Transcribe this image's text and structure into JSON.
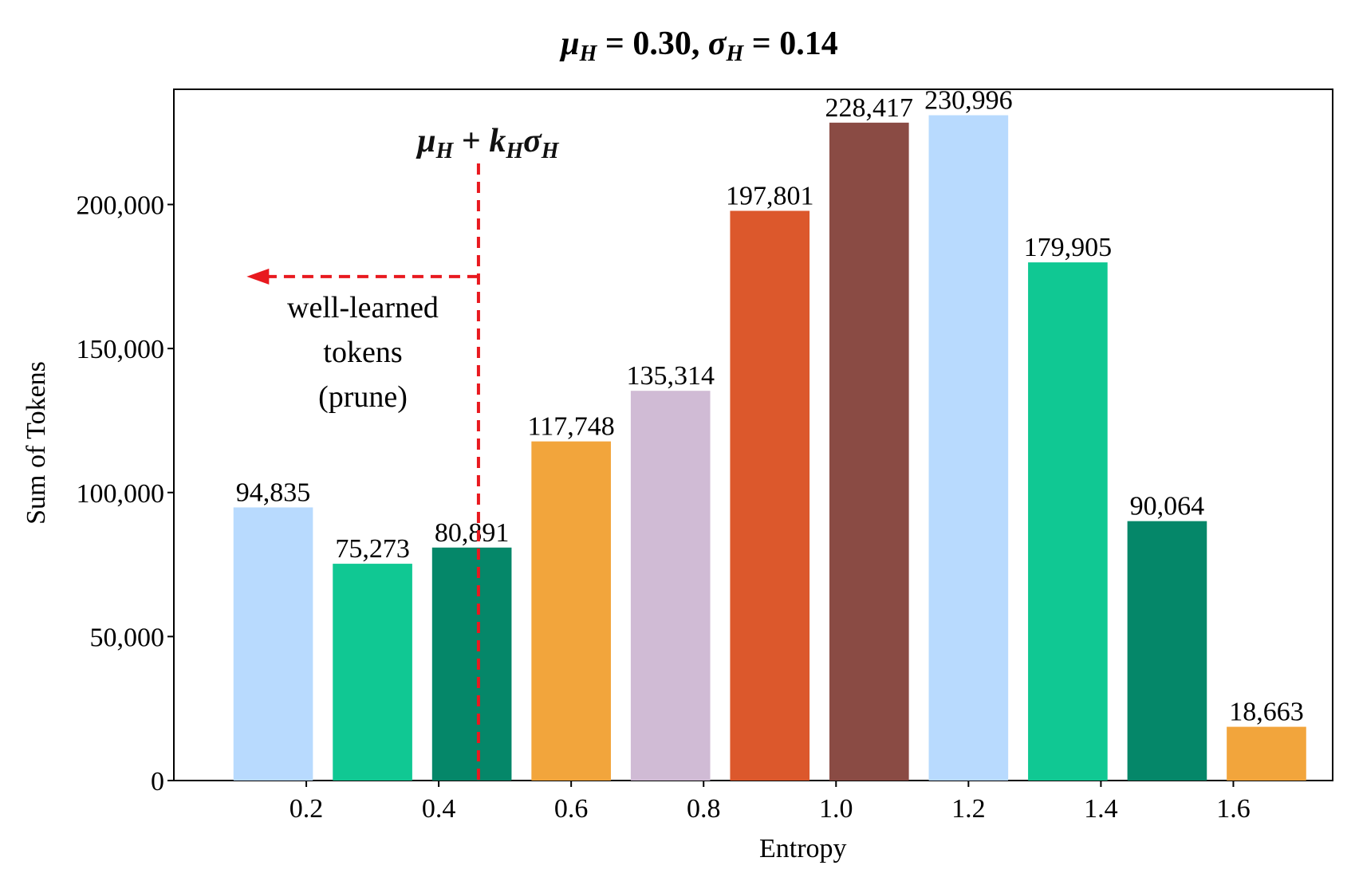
{
  "chart_data": {
    "type": "bar",
    "title": "μH = 0.30, σH = 0.14",
    "title_parts": {
      "mu": "μ",
      "sigma": "σ",
      "sub": "H",
      "mean_value": "0.30",
      "std_value": "0.14"
    },
    "xlabel": "Entropy",
    "ylabel": "Sum of Tokens",
    "xlim": [
      0.0,
      1.75
    ],
    "ylim": [
      0,
      240000
    ],
    "x_ticks": [
      0.2,
      0.4,
      0.6,
      0.8,
      1.0,
      1.2,
      1.4,
      1.6
    ],
    "x_tick_labels": [
      "0.2",
      "0.4",
      "0.6",
      "0.8",
      "1.0",
      "1.2",
      "1.4",
      "1.6"
    ],
    "y_ticks": [
      0,
      50000,
      100000,
      150000,
      200000
    ],
    "y_tick_labels": [
      "0",
      "50,000",
      "100,000",
      "150,000",
      "200,000"
    ],
    "bar_width": 0.12,
    "bars": [
      {
        "x": 0.15,
        "value": 94835,
        "label": "94,835",
        "color": "#b8dafe"
      },
      {
        "x": 0.3,
        "value": 75273,
        "label": "75,273",
        "color": "#10c893"
      },
      {
        "x": 0.45,
        "value": 80891,
        "label": "80,891",
        "color": "#058769"
      },
      {
        "x": 0.6,
        "value": 117748,
        "label": "117,748",
        "color": "#f2a53c"
      },
      {
        "x": 0.75,
        "value": 135314,
        "label": "135,314",
        "color": "#d0bbd5"
      },
      {
        "x": 0.9,
        "value": 197801,
        "label": "197,801",
        "color": "#dc582c"
      },
      {
        "x": 1.05,
        "value": 228417,
        "label": "228,417",
        "color": "#8a4b44"
      },
      {
        "x": 1.2,
        "value": 230996,
        "label": "230,996",
        "color": "#b8dafe"
      },
      {
        "x": 1.35,
        "value": 179905,
        "label": "179,905",
        "color": "#10c893"
      },
      {
        "x": 1.5,
        "value": 90064,
        "label": "90,064",
        "color": "#058769"
      },
      {
        "x": 1.65,
        "value": 18663,
        "label": "18,663",
        "color": "#f2a53c"
      }
    ],
    "threshold": {
      "x": 0.46,
      "label_parts": {
        "mu": "μ",
        "sub": "H",
        "plus": "+",
        "k": "k",
        "sigma": "σ"
      },
      "arrow_y": 175000,
      "arrow_to_x": 0.11,
      "color": "#e8191f"
    },
    "annotation": {
      "lines": [
        "well-learned",
        "tokens",
        "(prune)"
      ]
    }
  }
}
